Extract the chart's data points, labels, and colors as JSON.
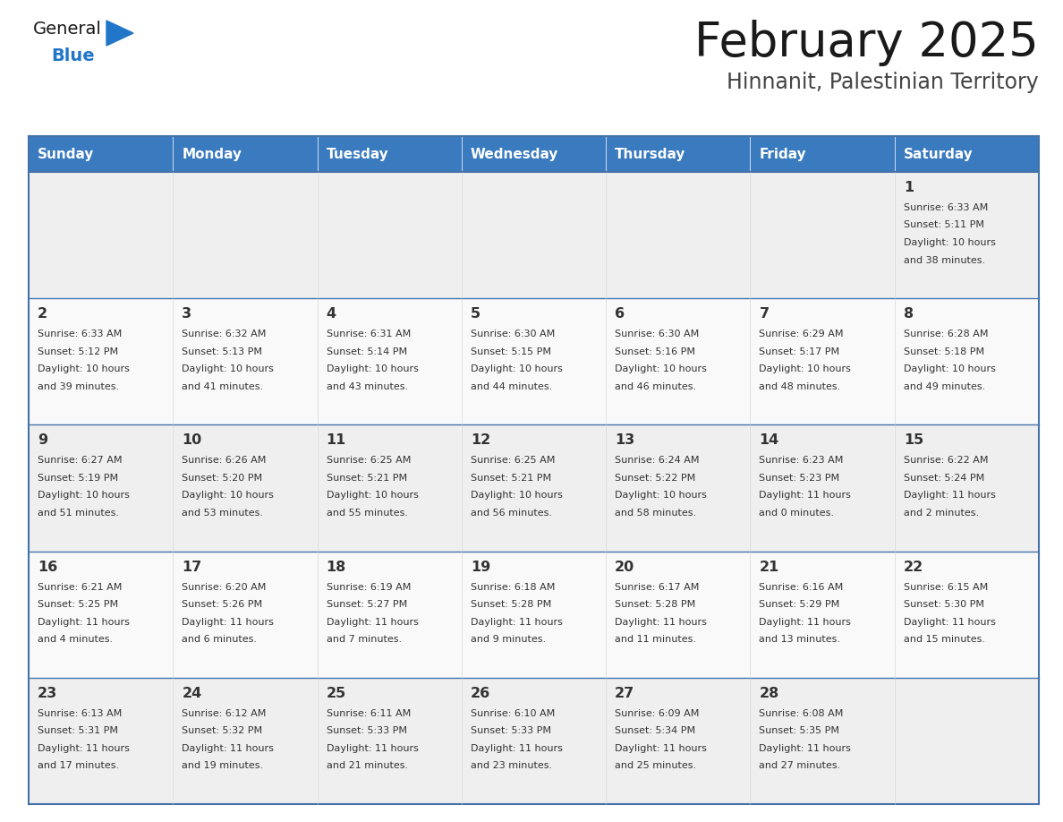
{
  "title": "February 2025",
  "subtitle": "Hinnanit, Palestinian Territory",
  "header_color": "#3a7abf",
  "header_text_color": "#ffffff",
  "cell_bg_even": "#efefef",
  "cell_bg_odd": "#f9f9f9",
  "border_color": "#4472a8",
  "row_border_color": "#4472a8",
  "text_color": "#333333",
  "days_of_week": [
    "Sunday",
    "Monday",
    "Tuesday",
    "Wednesday",
    "Thursday",
    "Friday",
    "Saturday"
  ],
  "weeks": [
    [
      {
        "day": null,
        "info": null
      },
      {
        "day": null,
        "info": null
      },
      {
        "day": null,
        "info": null
      },
      {
        "day": null,
        "info": null
      },
      {
        "day": null,
        "info": null
      },
      {
        "day": null,
        "info": null
      },
      {
        "day": 1,
        "info": "Sunrise: 6:33 AM\nSunset: 5:11 PM\nDaylight: 10 hours\nand 38 minutes."
      }
    ],
    [
      {
        "day": 2,
        "info": "Sunrise: 6:33 AM\nSunset: 5:12 PM\nDaylight: 10 hours\nand 39 minutes."
      },
      {
        "day": 3,
        "info": "Sunrise: 6:32 AM\nSunset: 5:13 PM\nDaylight: 10 hours\nand 41 minutes."
      },
      {
        "day": 4,
        "info": "Sunrise: 6:31 AM\nSunset: 5:14 PM\nDaylight: 10 hours\nand 43 minutes."
      },
      {
        "day": 5,
        "info": "Sunrise: 6:30 AM\nSunset: 5:15 PM\nDaylight: 10 hours\nand 44 minutes."
      },
      {
        "day": 6,
        "info": "Sunrise: 6:30 AM\nSunset: 5:16 PM\nDaylight: 10 hours\nand 46 minutes."
      },
      {
        "day": 7,
        "info": "Sunrise: 6:29 AM\nSunset: 5:17 PM\nDaylight: 10 hours\nand 48 minutes."
      },
      {
        "day": 8,
        "info": "Sunrise: 6:28 AM\nSunset: 5:18 PM\nDaylight: 10 hours\nand 49 minutes."
      }
    ],
    [
      {
        "day": 9,
        "info": "Sunrise: 6:27 AM\nSunset: 5:19 PM\nDaylight: 10 hours\nand 51 minutes."
      },
      {
        "day": 10,
        "info": "Sunrise: 6:26 AM\nSunset: 5:20 PM\nDaylight: 10 hours\nand 53 minutes."
      },
      {
        "day": 11,
        "info": "Sunrise: 6:25 AM\nSunset: 5:21 PM\nDaylight: 10 hours\nand 55 minutes."
      },
      {
        "day": 12,
        "info": "Sunrise: 6:25 AM\nSunset: 5:21 PM\nDaylight: 10 hours\nand 56 minutes."
      },
      {
        "day": 13,
        "info": "Sunrise: 6:24 AM\nSunset: 5:22 PM\nDaylight: 10 hours\nand 58 minutes."
      },
      {
        "day": 14,
        "info": "Sunrise: 6:23 AM\nSunset: 5:23 PM\nDaylight: 11 hours\nand 0 minutes."
      },
      {
        "day": 15,
        "info": "Sunrise: 6:22 AM\nSunset: 5:24 PM\nDaylight: 11 hours\nand 2 minutes."
      }
    ],
    [
      {
        "day": 16,
        "info": "Sunrise: 6:21 AM\nSunset: 5:25 PM\nDaylight: 11 hours\nand 4 minutes."
      },
      {
        "day": 17,
        "info": "Sunrise: 6:20 AM\nSunset: 5:26 PM\nDaylight: 11 hours\nand 6 minutes."
      },
      {
        "day": 18,
        "info": "Sunrise: 6:19 AM\nSunset: 5:27 PM\nDaylight: 11 hours\nand 7 minutes."
      },
      {
        "day": 19,
        "info": "Sunrise: 6:18 AM\nSunset: 5:28 PM\nDaylight: 11 hours\nand 9 minutes."
      },
      {
        "day": 20,
        "info": "Sunrise: 6:17 AM\nSunset: 5:28 PM\nDaylight: 11 hours\nand 11 minutes."
      },
      {
        "day": 21,
        "info": "Sunrise: 6:16 AM\nSunset: 5:29 PM\nDaylight: 11 hours\nand 13 minutes."
      },
      {
        "day": 22,
        "info": "Sunrise: 6:15 AM\nSunset: 5:30 PM\nDaylight: 11 hours\nand 15 minutes."
      }
    ],
    [
      {
        "day": 23,
        "info": "Sunrise: 6:13 AM\nSunset: 5:31 PM\nDaylight: 11 hours\nand 17 minutes."
      },
      {
        "day": 24,
        "info": "Sunrise: 6:12 AM\nSunset: 5:32 PM\nDaylight: 11 hours\nand 19 minutes."
      },
      {
        "day": 25,
        "info": "Sunrise: 6:11 AM\nSunset: 5:33 PM\nDaylight: 11 hours\nand 21 minutes."
      },
      {
        "day": 26,
        "info": "Sunrise: 6:10 AM\nSunset: 5:33 PM\nDaylight: 11 hours\nand 23 minutes."
      },
      {
        "day": 27,
        "info": "Sunrise: 6:09 AM\nSunset: 5:34 PM\nDaylight: 11 hours\nand 25 minutes."
      },
      {
        "day": 28,
        "info": "Sunrise: 6:08 AM\nSunset: 5:35 PM\nDaylight: 11 hours\nand 27 minutes."
      },
      {
        "day": null,
        "info": null
      }
    ]
  ],
  "logo_text_general": "General",
  "logo_text_blue": "Blue",
  "logo_color_general": "#1a1a1a",
  "logo_color_blue": "#2176c7",
  "logo_triangle_color": "#2176c7"
}
